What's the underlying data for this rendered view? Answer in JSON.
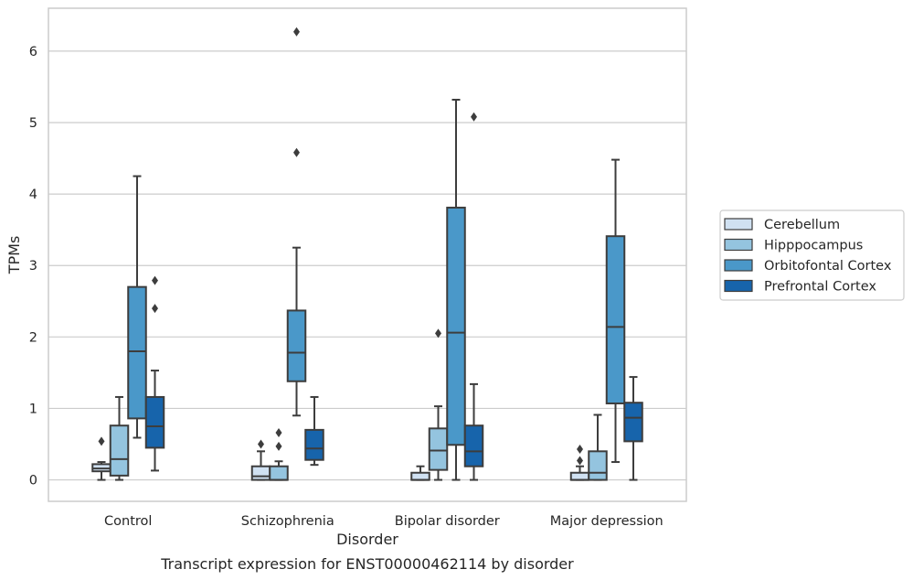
{
  "chart_data": {
    "type": "box",
    "caption": "Transcript expression for ENST00000462114 by disorder",
    "xlabel": "Disorder",
    "ylabel": "TPMs",
    "ylim": [
      -0.3,
      6.6
    ],
    "yticks": [
      0,
      1,
      2,
      3,
      4,
      5,
      6
    ],
    "grid": "horizontal",
    "legend_placement": "right-outside",
    "categories": [
      "Control",
      "Schizophrenia",
      "Bipolar disorder",
      "Major depression"
    ],
    "series": [
      {
        "name": "Cerebellum",
        "color": "#d0e1f2",
        "boxes": [
          {
            "whisker_low": 0.0,
            "q1": 0.12,
            "median": 0.16,
            "q3": 0.22,
            "whisker_high": 0.25,
            "outliers": [
              0.54
            ]
          },
          {
            "whisker_low": 0.0,
            "q1": 0.0,
            "median": 0.05,
            "q3": 0.19,
            "whisker_high": 0.4,
            "outliers": [
              0.5
            ]
          },
          {
            "whisker_low": 0.0,
            "q1": 0.0,
            "median": 0.0,
            "q3": 0.1,
            "whisker_high": 0.19,
            "outliers": []
          },
          {
            "whisker_low": 0.0,
            "q1": 0.0,
            "median": 0.0,
            "q3": 0.1,
            "whisker_high": 0.19,
            "outliers": [
              0.27,
              0.43
            ]
          }
        ]
      },
      {
        "name": "Hipppocampus",
        "color": "#94c4df",
        "boxes": [
          {
            "whisker_low": 0.0,
            "q1": 0.06,
            "median": 0.29,
            "q3": 0.76,
            "whisker_high": 1.16,
            "outliers": []
          },
          {
            "whisker_low": 0.0,
            "q1": 0.0,
            "median": 0.0,
            "q3": 0.19,
            "whisker_high": 0.26,
            "outliers": [
              0.47,
              0.66
            ]
          },
          {
            "whisker_low": 0.0,
            "q1": 0.14,
            "median": 0.41,
            "q3": 0.72,
            "whisker_high": 1.03,
            "outliers": [
              2.05
            ]
          },
          {
            "whisker_low": 0.0,
            "q1": 0.0,
            "median": 0.1,
            "q3": 0.4,
            "whisker_high": 0.91,
            "outliers": []
          }
        ]
      },
      {
        "name": "Orbitofontal Cortex",
        "color": "#4a98c9",
        "boxes": [
          {
            "whisker_low": 0.59,
            "q1": 0.86,
            "median": 1.8,
            "q3": 2.7,
            "whisker_high": 4.25,
            "outliers": []
          },
          {
            "whisker_low": 0.9,
            "q1": 1.38,
            "median": 1.78,
            "q3": 2.37,
            "whisker_high": 3.25,
            "outliers": [
              4.58,
              6.27
            ]
          },
          {
            "whisker_low": 0.0,
            "q1": 0.49,
            "median": 2.06,
            "q3": 3.81,
            "whisker_high": 5.32,
            "outliers": []
          },
          {
            "whisker_low": 0.25,
            "q1": 1.07,
            "median": 2.14,
            "q3": 3.41,
            "whisker_high": 4.48,
            "outliers": []
          }
        ]
      },
      {
        "name": "Prefrontal Cortex",
        "color": "#1764ab",
        "boxes": [
          {
            "whisker_low": 0.13,
            "q1": 0.45,
            "median": 0.75,
            "q3": 1.16,
            "whisker_high": 1.53,
            "outliers": [
              2.4,
              2.79
            ]
          },
          {
            "whisker_low": 0.21,
            "q1": 0.28,
            "median": 0.44,
            "q3": 0.7,
            "whisker_high": 1.16,
            "outliers": []
          },
          {
            "whisker_low": 0.0,
            "q1": 0.19,
            "median": 0.4,
            "q3": 0.76,
            "whisker_high": 1.34,
            "outliers": [
              5.08
            ]
          },
          {
            "whisker_low": 0.0,
            "q1": 0.54,
            "median": 0.87,
            "q3": 1.08,
            "whisker_high": 1.44,
            "outliers": []
          }
        ]
      }
    ]
  }
}
